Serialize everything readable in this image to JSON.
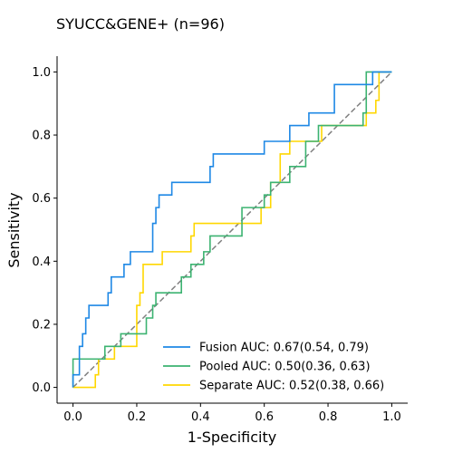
{
  "chart_data": {
    "type": "line",
    "title": "SYUCC&GENE+ (n=96)",
    "xlabel": "1-Specificity",
    "ylabel": "Sensitivity",
    "xlim": [
      -0.05,
      1.05
    ],
    "ylim": [
      -0.05,
      1.05
    ],
    "x_ticks": [
      "0.0",
      "0.2",
      "0.4",
      "0.6",
      "0.8",
      "1.0"
    ],
    "y_ticks": [
      "0.0",
      "0.2",
      "0.4",
      "0.6",
      "0.8",
      "1.0"
    ],
    "grid": false,
    "legend_position": "lower-right",
    "reference_line": {
      "style": "dashed",
      "color": "#808080",
      "points": [
        [
          0,
          0
        ],
        [
          1,
          1
        ]
      ]
    },
    "series": [
      {
        "name": "Fusion AUC: 0.67(0.54, 0.79)",
        "color": "#1E88E5",
        "points": [
          [
            0,
            0
          ],
          [
            0,
            0.04
          ],
          [
            0.02,
            0.04
          ],
          [
            0.02,
            0.13
          ],
          [
            0.03,
            0.13
          ],
          [
            0.03,
            0.17
          ],
          [
            0.04,
            0.17
          ],
          [
            0.04,
            0.22
          ],
          [
            0.05,
            0.22
          ],
          [
            0.05,
            0.26
          ],
          [
            0.11,
            0.26
          ],
          [
            0.11,
            0.3
          ],
          [
            0.12,
            0.3
          ],
          [
            0.12,
            0.35
          ],
          [
            0.16,
            0.35
          ],
          [
            0.16,
            0.39
          ],
          [
            0.18,
            0.39
          ],
          [
            0.18,
            0.43
          ],
          [
            0.25,
            0.43
          ],
          [
            0.25,
            0.52
          ],
          [
            0.26,
            0.52
          ],
          [
            0.26,
            0.57
          ],
          [
            0.27,
            0.57
          ],
          [
            0.27,
            0.61
          ],
          [
            0.31,
            0.61
          ],
          [
            0.31,
            0.65
          ],
          [
            0.43,
            0.65
          ],
          [
            0.43,
            0.7
          ],
          [
            0.44,
            0.7
          ],
          [
            0.44,
            0.74
          ],
          [
            0.6,
            0.74
          ],
          [
            0.6,
            0.78
          ],
          [
            0.68,
            0.78
          ],
          [
            0.68,
            0.83
          ],
          [
            0.74,
            0.83
          ],
          [
            0.74,
            0.87
          ],
          [
            0.82,
            0.87
          ],
          [
            0.82,
            0.96
          ],
          [
            0.94,
            0.96
          ],
          [
            0.94,
            1.0
          ],
          [
            1.0,
            1.0
          ]
        ]
      },
      {
        "name": "Pooled AUC: 0.50(0.36, 0.63)",
        "color": "#3CB371",
        "points": [
          [
            0,
            0
          ],
          [
            0,
            0.09
          ],
          [
            0.1,
            0.09
          ],
          [
            0.1,
            0.13
          ],
          [
            0.15,
            0.13
          ],
          [
            0.15,
            0.17
          ],
          [
            0.23,
            0.17
          ],
          [
            0.23,
            0.22
          ],
          [
            0.25,
            0.22
          ],
          [
            0.25,
            0.26
          ],
          [
            0.26,
            0.26
          ],
          [
            0.26,
            0.3
          ],
          [
            0.34,
            0.3
          ],
          [
            0.34,
            0.35
          ],
          [
            0.37,
            0.35
          ],
          [
            0.37,
            0.39
          ],
          [
            0.41,
            0.39
          ],
          [
            0.41,
            0.43
          ],
          [
            0.43,
            0.43
          ],
          [
            0.43,
            0.48
          ],
          [
            0.53,
            0.48
          ],
          [
            0.53,
            0.57
          ],
          [
            0.6,
            0.57
          ],
          [
            0.6,
            0.61
          ],
          [
            0.62,
            0.61
          ],
          [
            0.62,
            0.65
          ],
          [
            0.68,
            0.65
          ],
          [
            0.68,
            0.7
          ],
          [
            0.73,
            0.7
          ],
          [
            0.73,
            0.78
          ],
          [
            0.77,
            0.78
          ],
          [
            0.77,
            0.83
          ],
          [
            0.91,
            0.83
          ],
          [
            0.91,
            0.87
          ],
          [
            0.92,
            0.87
          ],
          [
            0.92,
            1.0
          ],
          [
            0.96,
            1.0
          ],
          [
            1.0,
            1.0
          ]
        ]
      },
      {
        "name": "Separate AUC: 0.52(0.38, 0.66)",
        "color": "#FFD700",
        "points": [
          [
            0,
            0
          ],
          [
            0.07,
            0
          ],
          [
            0.07,
            0.04
          ],
          [
            0.08,
            0.04
          ],
          [
            0.08,
            0.09
          ],
          [
            0.13,
            0.09
          ],
          [
            0.13,
            0.13
          ],
          [
            0.2,
            0.13
          ],
          [
            0.2,
            0.26
          ],
          [
            0.21,
            0.26
          ],
          [
            0.21,
            0.3
          ],
          [
            0.22,
            0.3
          ],
          [
            0.22,
            0.39
          ],
          [
            0.28,
            0.39
          ],
          [
            0.28,
            0.43
          ],
          [
            0.37,
            0.43
          ],
          [
            0.37,
            0.48
          ],
          [
            0.38,
            0.48
          ],
          [
            0.38,
            0.52
          ],
          [
            0.59,
            0.52
          ],
          [
            0.59,
            0.57
          ],
          [
            0.62,
            0.57
          ],
          [
            0.62,
            0.65
          ],
          [
            0.65,
            0.65
          ],
          [
            0.65,
            0.74
          ],
          [
            0.68,
            0.74
          ],
          [
            0.68,
            0.78
          ],
          [
            0.78,
            0.78
          ],
          [
            0.78,
            0.83
          ],
          [
            0.92,
            0.83
          ],
          [
            0.92,
            0.87
          ],
          [
            0.95,
            0.87
          ],
          [
            0.95,
            0.91
          ],
          [
            0.96,
            0.91
          ],
          [
            0.96,
            1.0
          ],
          [
            1.0,
            1.0
          ]
        ]
      }
    ]
  }
}
